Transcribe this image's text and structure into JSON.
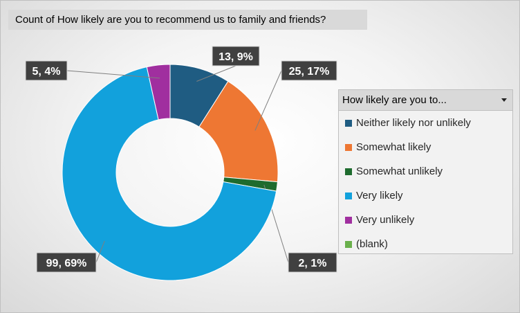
{
  "chart_data": {
    "type": "pie",
    "title": "Count of How likely are you to recommend us to family and friends?",
    "legend_title": "How likely are you to...",
    "legend_position": "right",
    "slices": [
      {
        "label": "Neither likely nor unlikely",
        "value": 13,
        "percent": "9%",
        "data_label": "13, 9%",
        "color": "#1f5c82"
      },
      {
        "label": "Somewhat likely",
        "value": 25,
        "percent": "17%",
        "data_label": "25, 17%",
        "color": "#ee7733"
      },
      {
        "label": "Somewhat unlikely",
        "value": 2,
        "percent": "1%",
        "data_label": "2, 1%",
        "color": "#1e6b2e"
      },
      {
        "label": "Very likely",
        "value": 99,
        "percent": "69%",
        "data_label": "99, 69%",
        "color": "#12a1dc"
      },
      {
        "label": "Very unlikely",
        "value": 5,
        "percent": "4%",
        "data_label": "5, 4%",
        "color": "#a02f9f"
      },
      {
        "label": "(blank)",
        "value": 0,
        "percent": "",
        "data_label": "",
        "color": "#6ab04c"
      }
    ]
  }
}
